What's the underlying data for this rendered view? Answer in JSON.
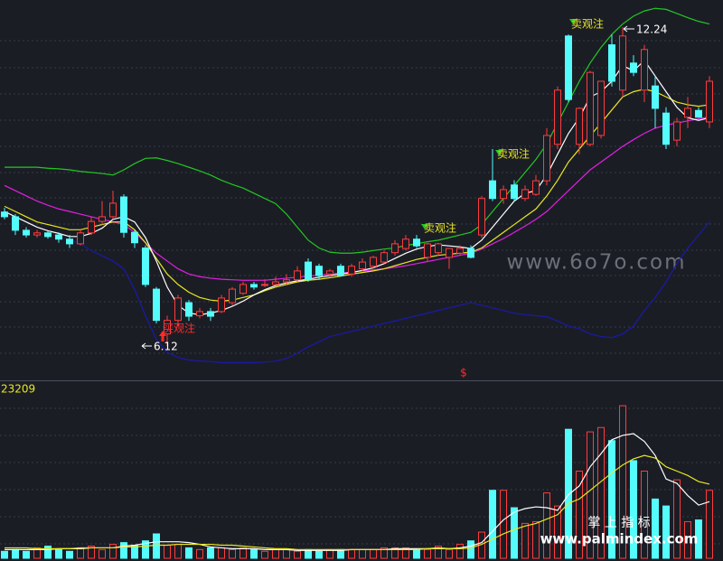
{
  "chart_data": {
    "type": "candlestick",
    "ylim": [
      5.46,
      12.76
    ],
    "up_color": "#ff3c3c",
    "down_color": "#54fcfc",
    "ohlc": [
      [
        8.69,
        8.77,
        8.55,
        8.6
      ],
      [
        8.6,
        8.65,
        8.25,
        8.34
      ],
      [
        8.34,
        8.4,
        8.2,
        8.25
      ],
      [
        8.25,
        8.35,
        8.2,
        8.29
      ],
      [
        8.29,
        8.32,
        8.18,
        8.22
      ],
      [
        8.25,
        8.3,
        8.1,
        8.17
      ],
      [
        8.17,
        8.25,
        8.0,
        8.08
      ],
      [
        8.08,
        8.35,
        8.05,
        8.29
      ],
      [
        8.29,
        8.6,
        8.25,
        8.51
      ],
      [
        8.51,
        8.9,
        8.45,
        8.6
      ],
      [
        8.6,
        9.1,
        8.55,
        8.86
      ],
      [
        8.98,
        9.03,
        8.2,
        8.3
      ],
      [
        8.3,
        8.34,
        8.0,
        8.1
      ],
      [
        8.0,
        8.05,
        7.25,
        7.3
      ],
      [
        7.21,
        7.25,
        6.55,
        6.61
      ],
      [
        6.35,
        6.7,
        6.12,
        6.61
      ],
      [
        6.61,
        7.1,
        6.5,
        7.04
      ],
      [
        6.95,
        7.0,
        6.6,
        6.69
      ],
      [
        6.7,
        6.85,
        6.65,
        6.78
      ],
      [
        6.78,
        6.85,
        6.6,
        6.69
      ],
      [
        6.78,
        7.1,
        6.75,
        7.04
      ],
      [
        6.95,
        7.25,
        6.9,
        7.21
      ],
      [
        7.13,
        7.35,
        7.1,
        7.3
      ],
      [
        7.3,
        7.35,
        7.2,
        7.25
      ],
      [
        7.3,
        7.4,
        7.25,
        7.3
      ],
      [
        7.3,
        7.45,
        7.28,
        7.35
      ],
      [
        7.35,
        7.5,
        7.3,
        7.39
      ],
      [
        7.39,
        7.65,
        7.35,
        7.56
      ],
      [
        7.73,
        7.8,
        7.35,
        7.39
      ],
      [
        7.65,
        7.7,
        7.4,
        7.47
      ],
      [
        7.5,
        7.6,
        7.45,
        7.56
      ],
      [
        7.65,
        7.7,
        7.45,
        7.47
      ],
      [
        7.5,
        7.7,
        7.45,
        7.65
      ],
      [
        7.6,
        7.8,
        7.55,
        7.73
      ],
      [
        7.65,
        7.85,
        7.6,
        7.82
      ],
      [
        7.73,
        7.95,
        7.7,
        7.91
      ],
      [
        7.91,
        8.15,
        7.85,
        8.08
      ],
      [
        7.99,
        8.25,
        7.95,
        8.17
      ],
      [
        8.17,
        8.25,
        8.0,
        8.04
      ],
      [
        7.82,
        8.1,
        7.75,
        8.08
      ],
      [
        7.91,
        8.1,
        7.85,
        8.08
      ],
      [
        7.82,
        8.0,
        7.6,
        7.99
      ],
      [
        7.9,
        8.05,
        7.85,
        7.99
      ],
      [
        7.99,
        8.05,
        7.8,
        7.82
      ],
      [
        8.25,
        9.0,
        8.2,
        8.95
      ],
      [
        9.29,
        9.9,
        8.9,
        8.95
      ],
      [
        8.95,
        9.2,
        8.85,
        9.12
      ],
      [
        9.21,
        9.3,
        8.9,
        8.95
      ],
      [
        8.95,
        9.2,
        8.9,
        9.12
      ],
      [
        9.03,
        9.4,
        9.0,
        9.29
      ],
      [
        9.29,
        10.3,
        9.2,
        10.16
      ],
      [
        9.99,
        11.1,
        9.9,
        11.03
      ],
      [
        12.07,
        12.1,
        10.8,
        10.85
      ],
      [
        9.99,
        10.7,
        9.8,
        10.68
      ],
      [
        9.99,
        11.4,
        9.95,
        11.37
      ],
      [
        10.16,
        11.2,
        10.1,
        11.2
      ],
      [
        11.9,
        12.1,
        11.1,
        11.2
      ],
      [
        11.03,
        12.24,
        10.9,
        12.07
      ],
      [
        11.55,
        11.7,
        11.3,
        11.37
      ],
      [
        11.03,
        11.9,
        10.8,
        11.81
      ],
      [
        11.11,
        11.3,
        10.3,
        10.68
      ],
      [
        10.59,
        10.7,
        9.9,
        9.99
      ],
      [
        10.07,
        10.5,
        9.95,
        10.42
      ],
      [
        10.51,
        10.9,
        10.3,
        10.68
      ],
      [
        10.64,
        10.7,
        10.5,
        10.51
      ],
      [
        10.42,
        11.3,
        10.3,
        11.2
      ]
    ],
    "lines": [
      {
        "color": "#22c722",
        "values": [
          9.55,
          9.55,
          9.55,
          9.55,
          9.53,
          9.52,
          9.5,
          9.47,
          9.45,
          9.43,
          9.4,
          9.5,
          9.62,
          9.72,
          9.73,
          9.68,
          9.62,
          9.55,
          9.48,
          9.4,
          9.3,
          9.22,
          9.15,
          9.05,
          8.95,
          8.85,
          8.65,
          8.4,
          8.15,
          8.0,
          7.92,
          7.9,
          7.9,
          7.92,
          7.95,
          7.98,
          8.0,
          8.05,
          8.08,
          8.12,
          8.15,
          8.2,
          8.25,
          8.3,
          8.45,
          8.7,
          8.95,
          9.2,
          9.45,
          9.7,
          10.0,
          10.4,
          10.8,
          11.2,
          11.55,
          11.85,
          12.1,
          12.3,
          12.45,
          12.55,
          12.6,
          12.58,
          12.5,
          12.42,
          12.35,
          12.3
        ]
      },
      {
        "color": "#1a1aa8",
        "values": [
          null,
          null,
          null,
          null,
          null,
          null,
          8.17,
          8.08,
          7.95,
          7.85,
          7.75,
          7.6,
          7.2,
          6.7,
          6.25,
          6.0,
          5.9,
          5.85,
          5.83,
          5.82,
          5.8,
          5.8,
          5.8,
          5.8,
          5.81,
          5.83,
          5.88,
          5.98,
          6.1,
          6.2,
          6.3,
          6.35,
          6.4,
          6.45,
          6.5,
          6.55,
          6.6,
          6.65,
          6.7,
          6.75,
          6.8,
          6.85,
          6.9,
          6.95,
          6.9,
          6.85,
          6.8,
          6.75,
          6.72,
          6.7,
          6.68,
          6.6,
          6.5,
          6.45,
          6.35,
          6.3,
          6.28,
          6.35,
          6.5,
          6.8,
          7.05,
          7.35,
          7.7,
          8.0,
          8.25,
          8.5
        ]
      },
      {
        "color": "#e020e0",
        "values": [
          9.2,
          9.1,
          9.0,
          8.9,
          8.82,
          8.75,
          8.7,
          8.65,
          8.6,
          8.55,
          8.5,
          8.45,
          8.3,
          8.1,
          7.9,
          7.75,
          7.6,
          7.5,
          7.45,
          7.42,
          7.4,
          7.39,
          7.38,
          7.38,
          7.38,
          7.4,
          7.42,
          7.44,
          7.46,
          7.48,
          7.5,
          7.52,
          7.54,
          7.56,
          7.58,
          7.6,
          7.63,
          7.66,
          7.7,
          7.74,
          7.78,
          7.82,
          7.86,
          7.9,
          7.98,
          8.08,
          8.18,
          8.3,
          8.42,
          8.55,
          8.7,
          8.9,
          9.1,
          9.3,
          9.5,
          9.65,
          9.8,
          9.95,
          10.08,
          10.2,
          10.3,
          10.36,
          10.4,
          10.44,
          10.48,
          10.52
        ]
      },
      {
        "color": "#e8e820",
        "values": [
          8.8,
          8.7,
          8.6,
          8.5,
          8.45,
          8.4,
          8.35,
          8.35,
          8.4,
          8.45,
          8.5,
          8.5,
          8.35,
          8.1,
          7.8,
          7.5,
          7.3,
          7.15,
          7.05,
          7.0,
          6.98,
          7.0,
          7.05,
          7.1,
          7.18,
          7.25,
          7.3,
          7.35,
          7.38,
          7.4,
          7.43,
          7.46,
          7.5,
          7.53,
          7.56,
          7.6,
          7.66,
          7.72,
          7.78,
          7.82,
          7.86,
          7.88,
          7.9,
          7.92,
          8.0,
          8.15,
          8.3,
          8.45,
          8.6,
          8.75,
          9.0,
          9.3,
          9.65,
          9.9,
          10.15,
          10.4,
          10.65,
          10.9,
          11.0,
          11.05,
          11.0,
          10.9,
          10.8,
          10.75,
          10.72,
          10.75
        ]
      },
      {
        "color": "#ffffff",
        "values": [
          8.7,
          8.6,
          8.5,
          8.4,
          8.33,
          8.28,
          8.22,
          8.22,
          8.28,
          8.38,
          8.55,
          8.6,
          8.5,
          8.2,
          7.75,
          7.25,
          6.9,
          6.75,
          6.72,
          6.75,
          6.8,
          6.88,
          6.98,
          7.1,
          7.2,
          7.28,
          7.33,
          7.37,
          7.4,
          7.44,
          7.47,
          7.5,
          7.53,
          7.57,
          7.62,
          7.7,
          7.8,
          7.9,
          7.98,
          8.03,
          8.06,
          8.04,
          8.02,
          7.99,
          8.15,
          8.4,
          8.65,
          8.9,
          9.05,
          9.1,
          9.4,
          9.8,
          10.2,
          10.5,
          10.9,
          11.0,
          11.2,
          11.5,
          11.4,
          11.6,
          11.3,
          11.0,
          10.7,
          10.5,
          10.45,
          10.5
        ]
      }
    ],
    "volume": {
      "label": 23209,
      "ylim": [
        0,
        200
      ],
      "values": [
        8,
        10,
        8,
        12,
        14,
        10,
        8,
        12,
        14,
        10,
        16,
        18,
        15,
        20,
        28,
        15,
        16,
        12,
        10,
        12,
        12,
        10,
        12,
        10,
        8,
        10,
        10,
        8,
        10,
        8,
        10,
        10,
        10,
        10,
        10,
        12,
        12,
        12,
        10,
        10,
        14,
        10,
        16,
        20,
        30,
        78,
        78,
        58,
        40,
        42,
        75,
        60,
        148,
        100,
        145,
        150,
        135,
        175,
        112,
        100,
        68,
        60,
        90,
        42,
        44,
        78
      ],
      "lines": [
        {
          "color": "#ffffff",
          "values": [
            10,
            10,
            10,
            10,
            10,
            11,
            11,
            11,
            12,
            12,
            12,
            14,
            15,
            17,
            19,
            19,
            19,
            18,
            16,
            13,
            12,
            11,
            11,
            11,
            10,
            10,
            10,
            9,
            9,
            9,
            9,
            9,
            10,
            10,
            10,
            10,
            11,
            11,
            11,
            11,
            12,
            11,
            12,
            14,
            18,
            31,
            44,
            53,
            57,
            59,
            58,
            55,
            73,
            83,
            105,
            120,
            136,
            141,
            143,
            134,
            118,
            91,
            86,
            72,
            61,
            65
          ]
        },
        {
          "color": "#e8e820",
          "values": [
            12,
            12,
            12,
            11,
            11,
            11,
            11,
            12,
            12,
            12,
            12,
            13,
            13,
            14,
            15,
            15,
            16,
            16,
            16,
            16,
            15,
            15,
            14,
            13,
            12,
            11,
            11,
            10,
            10,
            10,
            10,
            10,
            10,
            10,
            10,
            10,
            10,
            10,
            10,
            11,
            11,
            11,
            11,
            12,
            16,
            22,
            28,
            33,
            37,
            40,
            45,
            50,
            63,
            68,
            78,
            88,
            98,
            107,
            114,
            118,
            115,
            105,
            100,
            95,
            88,
            85
          ]
        }
      ]
    },
    "signals": [
      "卖观注",
      "卖观注",
      "卖观注",
      "买观注"
    ],
    "low": 6.12,
    "high": 12.24,
    "marker": "$",
    "watermarks": [
      "www.6o7o.com",
      "掌 上 指 标",
      "www.palmindex.com"
    ]
  }
}
